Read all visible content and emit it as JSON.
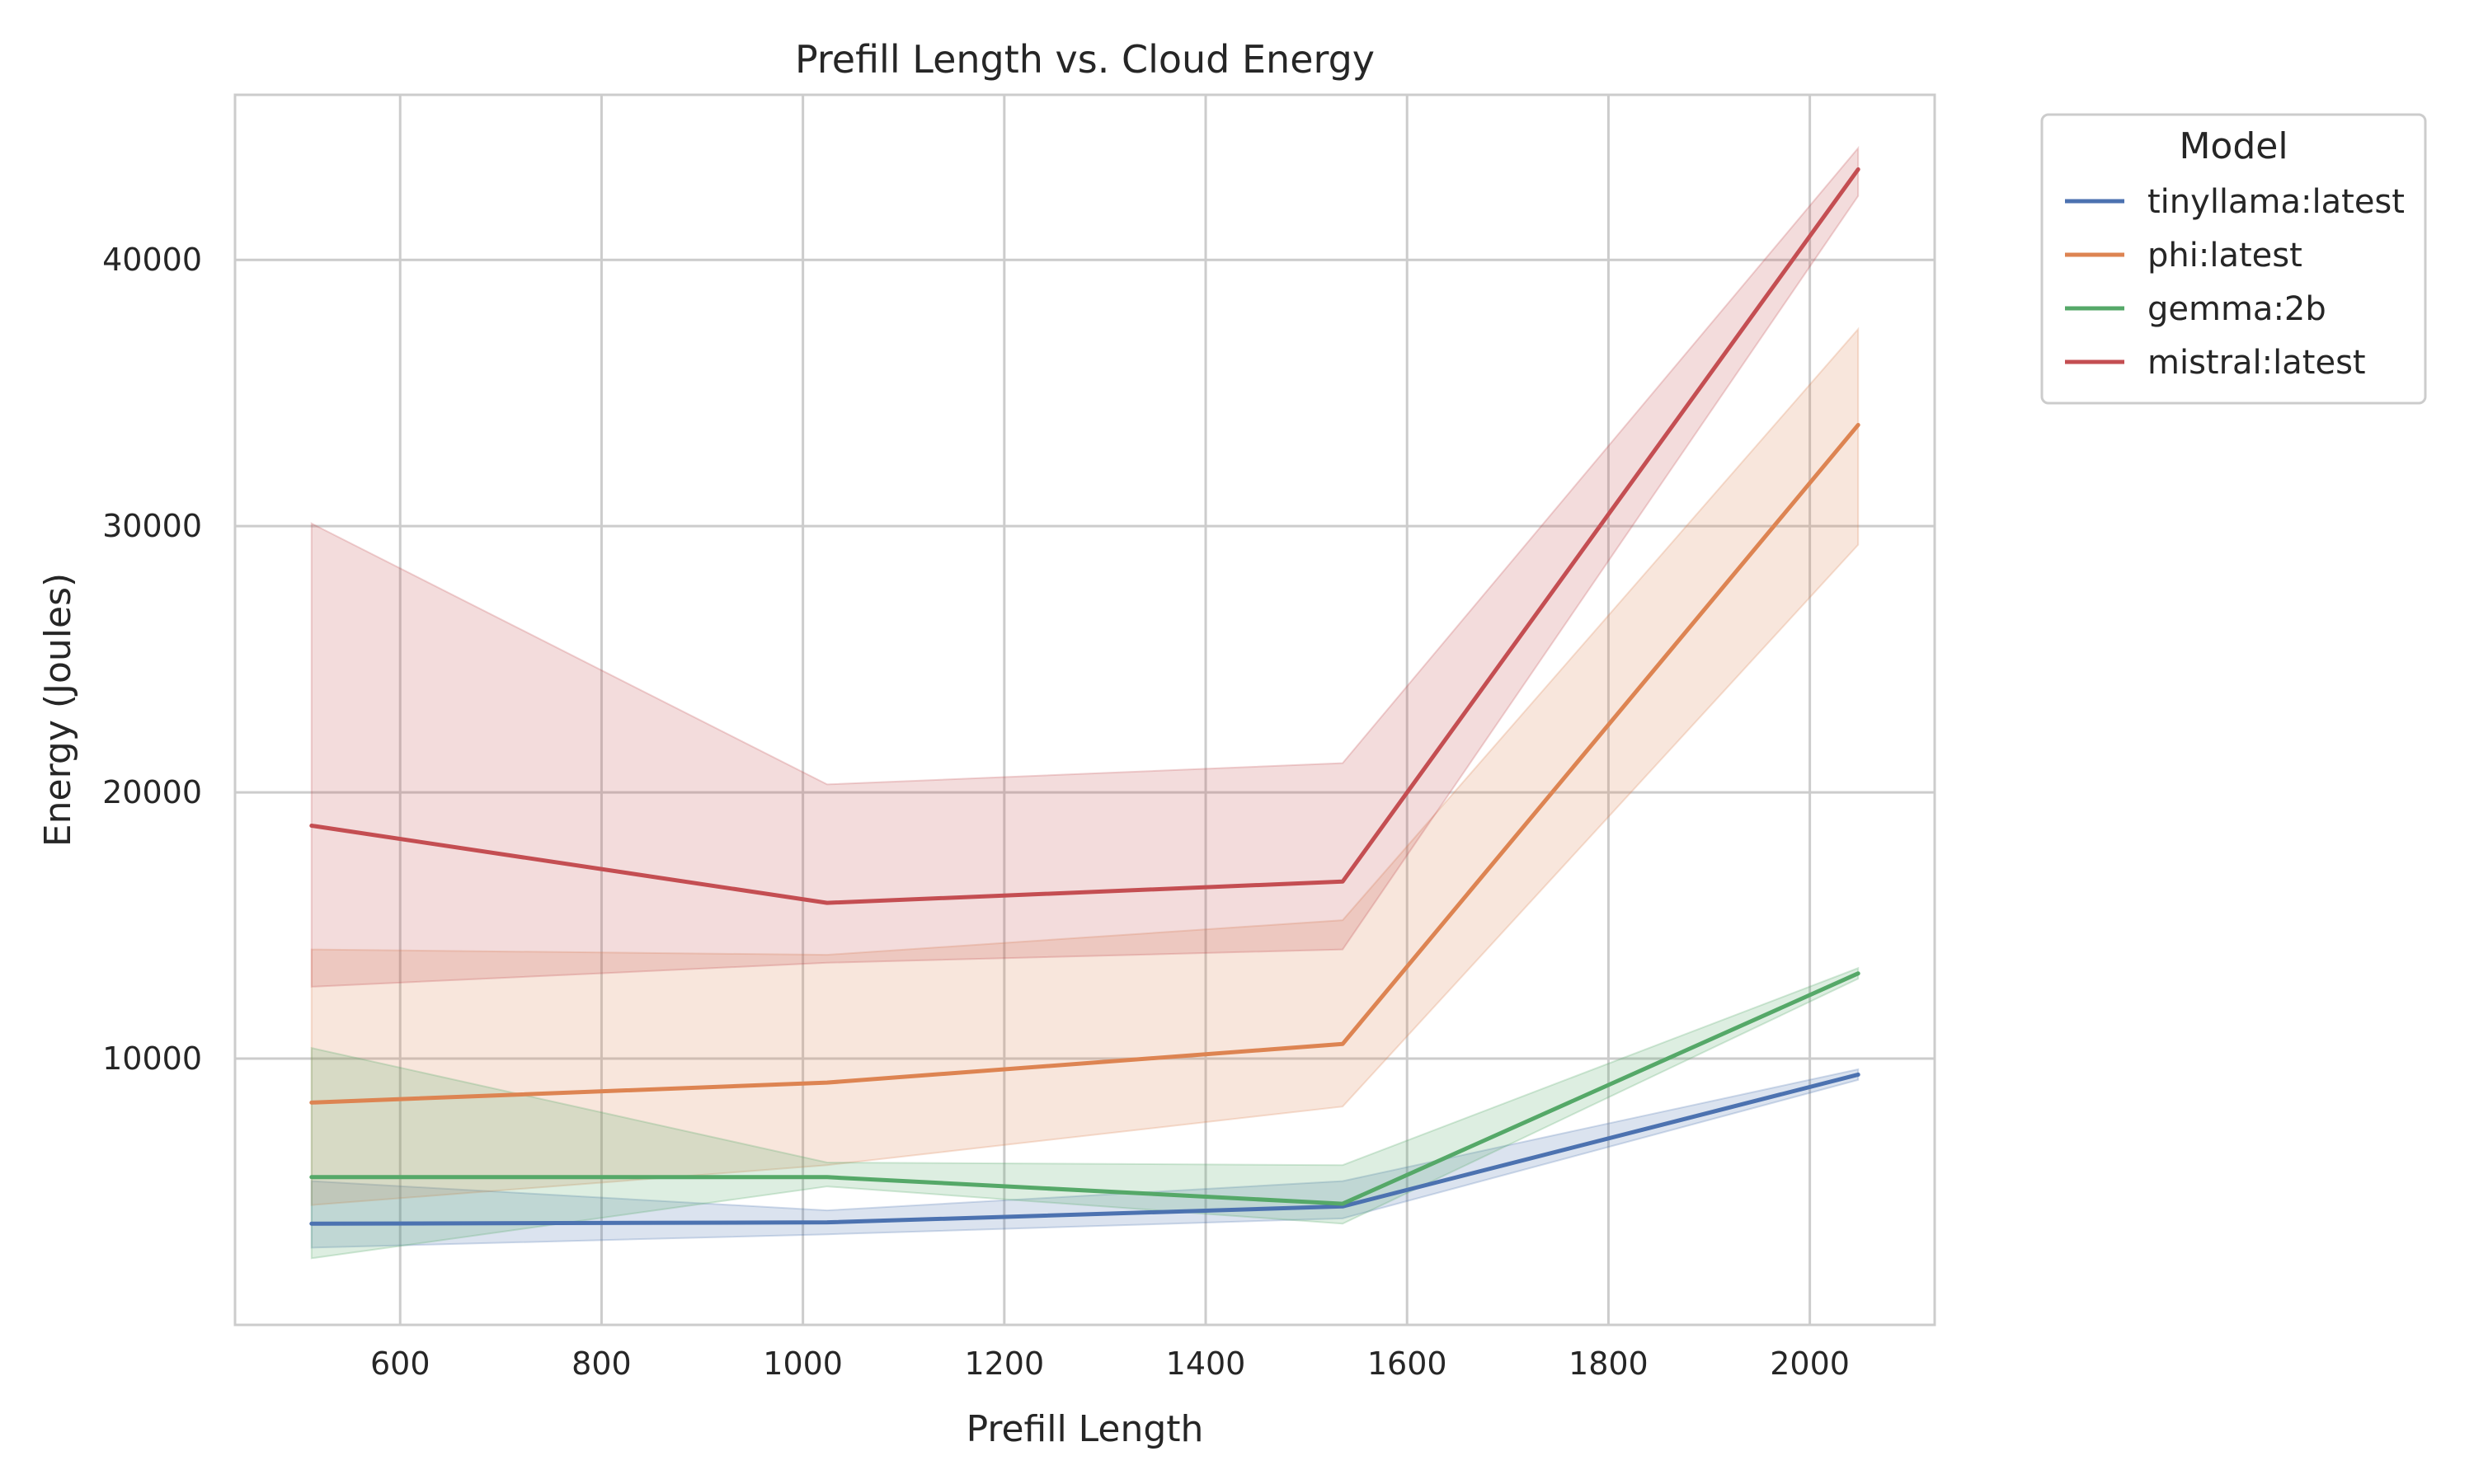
{
  "chart_data": {
    "type": "line",
    "title": "Prefill Length vs. Cloud Energy",
    "xlabel": "Prefill Length",
    "ylabel": "Energy (Joules)",
    "xlim": [
      436,
      2124
    ],
    "ylim": [
      0,
      46200
    ],
    "x_ticks": [
      600,
      800,
      1000,
      1200,
      1400,
      1600,
      1800,
      2000
    ],
    "y_ticks": [
      10000,
      20000,
      30000,
      40000
    ],
    "x_tick_labels": [
      "600",
      "800",
      "1000",
      "1200",
      "1400",
      "1600",
      "1800",
      "2000"
    ],
    "y_tick_labels": [
      "10000",
      "20000",
      "30000",
      "40000"
    ],
    "grid": true,
    "legend": {
      "title": "Model",
      "placement": "outside-top-right"
    },
    "x": [
      512,
      1024,
      1536,
      2048
    ],
    "series": [
      {
        "name": "tinyllama:latest",
        "color": "#4c72b0",
        "values": [
          3800,
          3850,
          4450,
          9400
        ],
        "lower": [
          2900,
          3400,
          4000,
          9200
        ],
        "upper": [
          5400,
          4300,
          5400,
          9600
        ]
      },
      {
        "name": "phi:latest",
        "color": "#dd8452",
        "values": [
          8350,
          9100,
          10550,
          33800
        ],
        "lower": [
          4500,
          6000,
          8200,
          29300
        ],
        "upper": [
          14100,
          13900,
          15200,
          37400
        ]
      },
      {
        "name": "gemma:2b",
        "color": "#55a868",
        "values": [
          5550,
          5550,
          4550,
          13200
        ],
        "lower": [
          2500,
          5200,
          3800,
          13000
        ],
        "upper": [
          10400,
          6100,
          6000,
          13400
        ]
      },
      {
        "name": "mistral:latest",
        "color": "#c44e52",
        "values": [
          18750,
          15850,
          16650,
          43400
        ],
        "lower": [
          12700,
          13600,
          14100,
          42400
        ],
        "upper": [
          30100,
          20300,
          21100,
          44200
        ]
      }
    ]
  }
}
